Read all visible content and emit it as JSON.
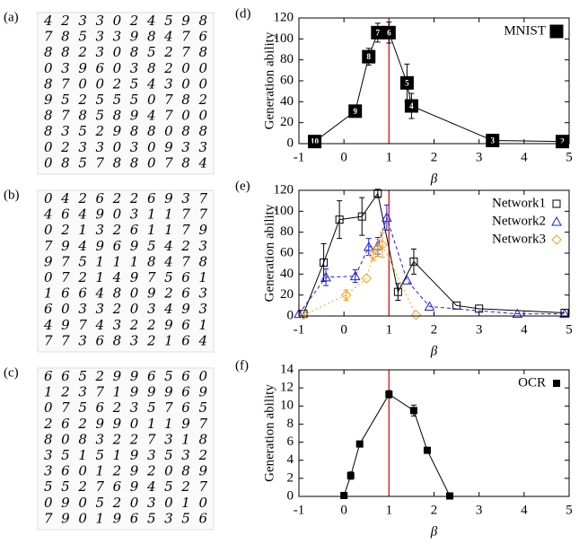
{
  "panels": [
    "(a)",
    "(b)",
    "(c)"
  ],
  "digit_grids": [
    [
      "4233024598",
      "7853398476",
      "8823085278",
      "0396038200",
      "8700254300",
      "9525550782",
      "8785894700",
      "8352988088",
      "0233030933",
      "0857880784"
    ],
    [
      "0426226937",
      "4649031177",
      "0213261179",
      "7949695423",
      "9751118478",
      "0721497561",
      "1664809263",
      "6033203493",
      "4974322961",
      "7736832164"
    ],
    [
      "6652996560",
      "1237199969",
      "0756235765",
      "2629901197",
      "8083227318",
      "3515193532",
      "3601292089",
      "5527694527",
      "0905203010",
      "7901965356"
    ]
  ],
  "chart_data": [
    {
      "type": "line",
      "panel": "(d)",
      "xlabel": "β",
      "ylabel": "Generation ability",
      "xlim": [
        -1,
        5
      ],
      "xticks": [
        -1,
        0,
        1,
        2,
        3,
        4,
        5
      ],
      "ylim": [
        0,
        120
      ],
      "yticks": [
        0,
        20,
        40,
        60,
        80,
        100,
        120
      ],
      "vline": 1,
      "vline_color": "#e8262a",
      "legend": "upper right",
      "series": [
        {
          "name": "MNIST",
          "color": "#000000",
          "marker": "filled-square",
          "dash": "none",
          "x": [
            -0.65,
            0.25,
            0.55,
            0.75,
            1.0,
            1.4,
            1.5,
            3.3,
            4.85
          ],
          "values": [
            2,
            31,
            83,
            106,
            106,
            58,
            36,
            3,
            2
          ],
          "errors": [
            null,
            null,
            8,
            9,
            10,
            18,
            12,
            null,
            null
          ],
          "point_labels": [
            "10",
            "9",
            "8",
            "7",
            "6",
            "5",
            "4",
            "3",
            "2"
          ]
        }
      ]
    },
    {
      "type": "line",
      "panel": "(e)",
      "xlabel": "β",
      "ylabel": "Generation ability",
      "xlim": [
        -1,
        5
      ],
      "xticks": [
        -1,
        0,
        1,
        2,
        3,
        4,
        5
      ],
      "ylim": [
        0,
        120
      ],
      "yticks": [
        0,
        20,
        40,
        60,
        80,
        100,
        120
      ],
      "vline": 1,
      "vline_color": "#e8262a",
      "legend": "upper right",
      "series": [
        {
          "name": "Network1",
          "color": "#000000",
          "marker": "open-square",
          "dash": "none",
          "x": [
            -0.9,
            -0.45,
            -0.1,
            0.4,
            0.75,
            1.2,
            1.55,
            2.5,
            3.0,
            4.9
          ],
          "values": [
            2,
            51,
            92,
            95,
            117,
            23,
            52,
            10,
            7,
            3
          ],
          "errors": [
            null,
            18,
            18,
            18,
            4,
            8,
            12,
            null,
            null,
            null
          ]
        },
        {
          "name": "Network2",
          "color": "#1f1fd6",
          "marker": "open-triangle",
          "dash": "4 3",
          "x": [
            -1.0,
            -0.4,
            0.25,
            0.55,
            0.75,
            0.95,
            1.4,
            1.9,
            3.85,
            4.9
          ],
          "values": [
            2,
            37,
            38,
            66,
            67,
            94,
            34,
            9,
            2,
            2
          ],
          "errors": [
            null,
            8,
            6,
            8,
            8,
            12,
            null,
            null,
            null,
            null
          ]
        },
        {
          "name": "Network3",
          "color": "#f0a020",
          "marker": "open-diamond",
          "dash": "2 3",
          "x": [
            -0.9,
            0.05,
            0.5,
            0.65,
            0.75,
            0.85,
            1.6
          ],
          "values": [
            1,
            20,
            36,
            58,
            65,
            68,
            1
          ],
          "errors": [
            null,
            5,
            null,
            5,
            8,
            12,
            null
          ]
        }
      ]
    },
    {
      "type": "line",
      "panel": "(f)",
      "xlabel": "β",
      "ylabel": "Generation ability",
      "xlim": [
        -1,
        5
      ],
      "xticks": [
        -1,
        0,
        1,
        2,
        3,
        4,
        5
      ],
      "ylim": [
        0,
        14
      ],
      "yticks": [
        0,
        2,
        4,
        6,
        8,
        10,
        12,
        14
      ],
      "vline": 1,
      "vline_color": "#e8262a",
      "legend": "upper right",
      "series": [
        {
          "name": "OCR",
          "color": "#000000",
          "marker": "small-square",
          "dash": "none",
          "x": [
            0,
            0.15,
            0.35,
            1.0,
            1.55,
            1.85,
            2.35
          ],
          "values": [
            0.1,
            2.3,
            5.8,
            11.3,
            9.5,
            5.1,
            0.05
          ],
          "errors": [
            null,
            0.4,
            null,
            0.4,
            0.6,
            null,
            null
          ]
        }
      ]
    }
  ]
}
